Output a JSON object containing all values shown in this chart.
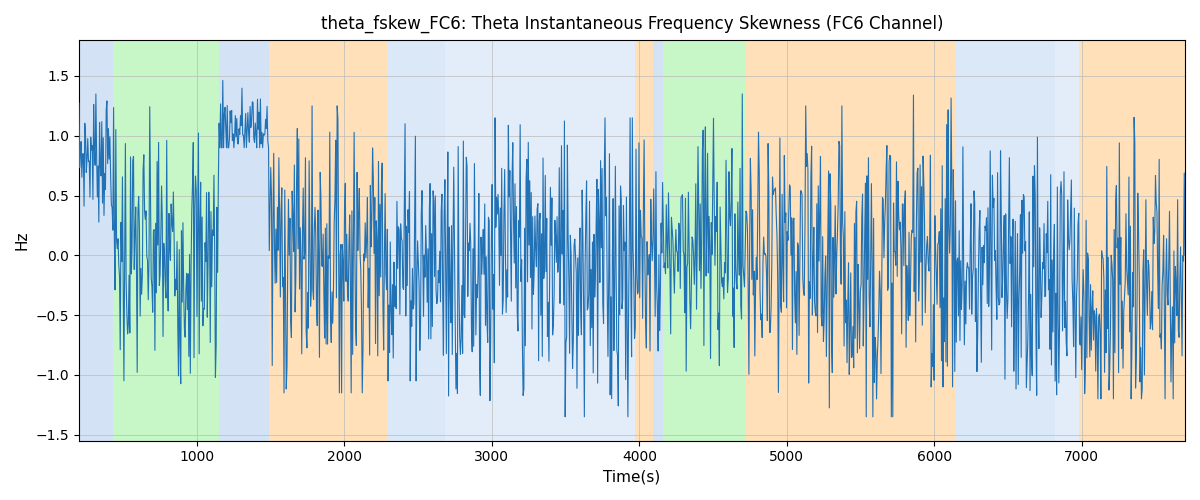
{
  "title": "theta_fskew_FC6: Theta Instantaneous Frequency Skewness (FC6 Channel)",
  "xlabel": "Time(s)",
  "ylabel": "Hz",
  "xlim": [
    200,
    7700
  ],
  "ylim": [
    -1.55,
    1.8
  ],
  "line_color": "#2171b5",
  "line_width": 0.8,
  "figsize": [
    12,
    5
  ],
  "dpi": 100,
  "bands": [
    {
      "xmin": 200,
      "xmax": 430,
      "color": "#b0ccee",
      "alpha": 0.55
    },
    {
      "xmin": 430,
      "xmax": 1150,
      "color": "#90ee90",
      "alpha": 0.5
    },
    {
      "xmin": 1150,
      "xmax": 1490,
      "color": "#b0ccee",
      "alpha": 0.55
    },
    {
      "xmin": 1490,
      "xmax": 2290,
      "color": "#ffc880",
      "alpha": 0.55
    },
    {
      "xmin": 2290,
      "xmax": 2680,
      "color": "#b0ccee",
      "alpha": 0.45
    },
    {
      "xmin": 2680,
      "xmax": 3970,
      "color": "#b0ccee",
      "alpha": 0.35
    },
    {
      "xmin": 3970,
      "xmax": 4090,
      "color": "#ffc880",
      "alpha": 0.55
    },
    {
      "xmin": 4090,
      "xmax": 4160,
      "color": "#b0ccee",
      "alpha": 0.55
    },
    {
      "xmin": 4160,
      "xmax": 4720,
      "color": "#90ee90",
      "alpha": 0.5
    },
    {
      "xmin": 4720,
      "xmax": 5720,
      "color": "#ffc880",
      "alpha": 0.55
    },
    {
      "xmin": 5720,
      "xmax": 6150,
      "color": "#ffc880",
      "alpha": 0.55
    },
    {
      "xmin": 6150,
      "xmax": 6820,
      "color": "#b0ccee",
      "alpha": 0.45
    },
    {
      "xmin": 6820,
      "xmax": 6980,
      "color": "#b0ccee",
      "alpha": 0.35
    },
    {
      "xmin": 6980,
      "xmax": 7700,
      "color": "#ffc880",
      "alpha": 0.55
    }
  ],
  "xticks": [
    1000,
    2000,
    3000,
    4000,
    5000,
    6000,
    7000
  ],
  "yticks": [
    -1.5,
    -1.0,
    -0.5,
    0.0,
    0.5,
    1.0,
    1.5
  ],
  "n_points": 1500,
  "seed": 7
}
